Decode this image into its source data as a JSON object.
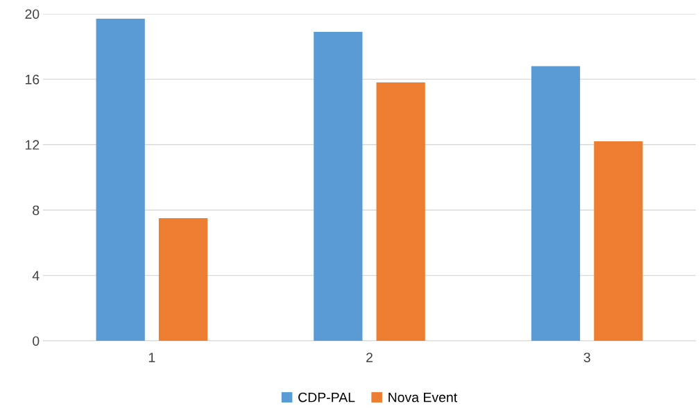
{
  "chart_data": {
    "type": "bar",
    "categories": [
      "1",
      "2",
      "3"
    ],
    "series": [
      {
        "name": "CDP-PAL",
        "color": "#5b9bd5",
        "values": [
          19.7,
          18.9,
          16.8
        ]
      },
      {
        "name": "Nova Event",
        "color": "#ed7d31",
        "values": [
          7.5,
          15.8,
          12.2
        ]
      }
    ],
    "ylim": [
      0,
      20
    ],
    "yticks": [
      0,
      4,
      8,
      12,
      16,
      20
    ],
    "grid": "y",
    "legend": "bottom"
  }
}
